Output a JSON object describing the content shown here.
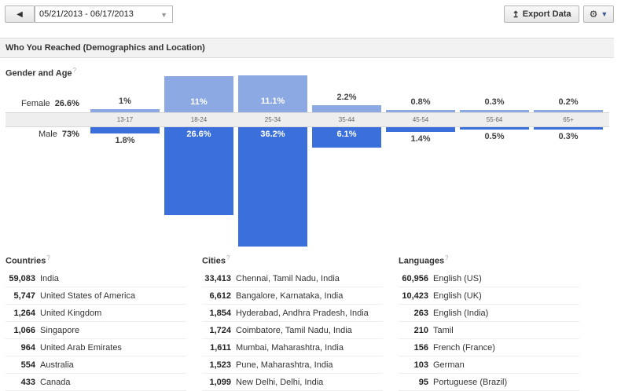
{
  "toolbar": {
    "date_range": "05/21/2013 - 06/17/2013",
    "export_label": "Export Data"
  },
  "section": {
    "title": "Who You Reached (Demographics and Location)"
  },
  "gender_age": {
    "title": "Gender and Age",
    "female_label": "Female",
    "female_total": "26.6%",
    "male_label": "Male",
    "male_total": "73%",
    "groups": [
      {
        "age": "13-17",
        "female": "1%",
        "male": "1.8%",
        "f": 1.0,
        "m": 1.8
      },
      {
        "age": "18-24",
        "female": "11%",
        "male": "26.6%",
        "f": 11.0,
        "m": 26.6
      },
      {
        "age": "25-34",
        "female": "11.1%",
        "male": "36.2%",
        "f": 11.1,
        "m": 36.2
      },
      {
        "age": "35-44",
        "female": "2.2%",
        "male": "6.1%",
        "f": 2.2,
        "m": 6.1
      },
      {
        "age": "45-54",
        "female": "0.8%",
        "male": "1.4%",
        "f": 0.8,
        "m": 1.4
      },
      {
        "age": "55-64",
        "female": "0.3%",
        "male": "0.5%",
        "f": 0.3,
        "m": 0.5
      },
      {
        "age": "65+",
        "female": "0.2%",
        "male": "0.3%",
        "f": 0.2,
        "m": 0.3
      }
    ]
  },
  "countries": {
    "title": "Countries",
    "rows": [
      {
        "count": "59,083",
        "name": "India"
      },
      {
        "count": "5,747",
        "name": "United States of America"
      },
      {
        "count": "1,264",
        "name": "United Kingdom"
      },
      {
        "count": "1,066",
        "name": "Singapore"
      },
      {
        "count": "964",
        "name": "United Arab Emirates"
      },
      {
        "count": "554",
        "name": "Australia"
      },
      {
        "count": "433",
        "name": "Canada"
      }
    ]
  },
  "cities": {
    "title": "Cities",
    "rows": [
      {
        "count": "33,413",
        "name": "Chennai, Tamil Nadu, India"
      },
      {
        "count": "6,612",
        "name": "Bangalore, Karnataka, India"
      },
      {
        "count": "1,854",
        "name": "Hyderabad, Andhra Pradesh, India"
      },
      {
        "count": "1,724",
        "name": "Coimbatore, Tamil Nadu, India"
      },
      {
        "count": "1,611",
        "name": "Mumbai, Maharashtra, India"
      },
      {
        "count": "1,523",
        "name": "Pune, Maharashtra, India"
      },
      {
        "count": "1,099",
        "name": "New Delhi, Delhi, India"
      }
    ]
  },
  "languages": {
    "title": "Languages",
    "rows": [
      {
        "count": "60,956",
        "name": "English (US)"
      },
      {
        "count": "10,423",
        "name": "English (UK)"
      },
      {
        "count": "263",
        "name": "English (India)"
      },
      {
        "count": "210",
        "name": "Tamil"
      },
      {
        "count": "156",
        "name": "French (France)"
      },
      {
        "count": "103",
        "name": "German"
      },
      {
        "count": "95",
        "name": "Portuguese (Brazil)"
      }
    ]
  }
}
